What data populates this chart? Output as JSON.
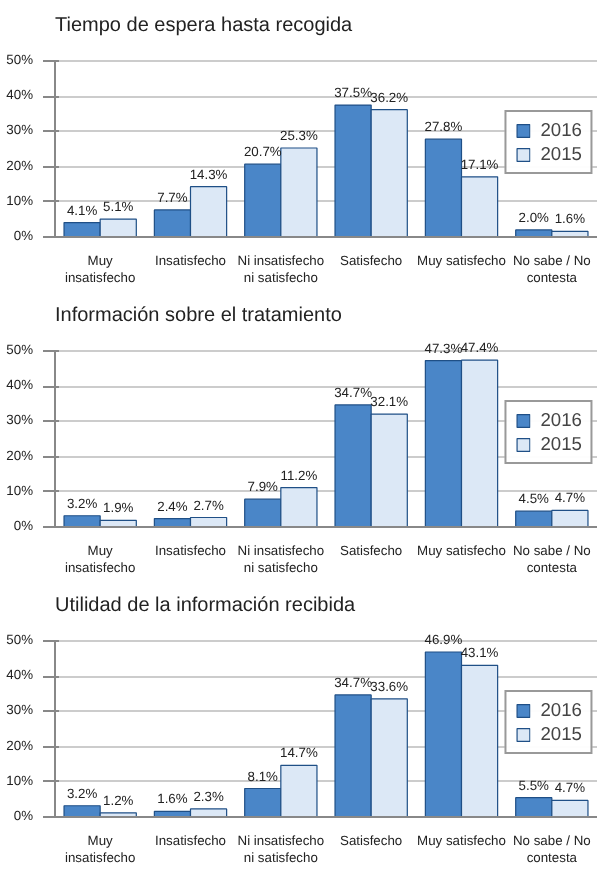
{
  "chart_data": [
    {
      "type": "bar",
      "title": "Tiempo de espera hasta recogida",
      "categories": [
        "Muy insatisfecho",
        "Insatisfecho",
        "Ni insatisfecho ni satisfecho",
        "Satisfecho",
        "Muy satisfecho",
        "No sabe / No contesta"
      ],
      "series": [
        {
          "name": "2016",
          "color": "#4a86c8",
          "values": [
            4.1,
            7.7,
            20.7,
            37.5,
            27.8,
            2.0
          ],
          "value_labels": [
            "4.1%",
            "7.7%",
            "20.7%",
            "37.5%",
            "27.8%",
            "2.0%"
          ]
        },
        {
          "name": "2015",
          "color": "#dce8f6",
          "values": [
            5.1,
            14.3,
            25.3,
            36.2,
            17.1,
            1.6
          ],
          "value_labels": [
            "5.1%",
            "14.3%",
            "25.3%",
            "36.2%",
            "17.1%",
            "1.6%"
          ]
        }
      ],
      "ylim": [
        0,
        50
      ],
      "yticks": [
        {
          "value": 0,
          "label": "0%"
        },
        {
          "value": 10,
          "label": "10%"
        },
        {
          "value": 20,
          "label": "20%"
        },
        {
          "value": 30,
          "label": "30%"
        },
        {
          "value": 40,
          "label": "40%"
        },
        {
          "value": 50,
          "label": "50%"
        }
      ],
      "grid": "y",
      "legend": "right"
    },
    {
      "type": "bar",
      "title": "Información sobre el tratamiento",
      "categories": [
        "Muy insatisfecho",
        "Insatisfecho",
        "Ni insatisfecho ni satisfecho",
        "Satisfecho",
        "Muy satisfecho",
        "No sabe / No contesta"
      ],
      "series": [
        {
          "name": "2016",
          "color": "#4a86c8",
          "values": [
            3.2,
            2.4,
            7.9,
            34.7,
            47.3,
            4.5
          ],
          "value_labels": [
            "3.2%",
            "2.4%",
            "7.9%",
            "34.7%",
            "47.3%",
            "4.5%"
          ]
        },
        {
          "name": "2015",
          "color": "#dce8f6",
          "values": [
            1.9,
            2.7,
            11.2,
            32.1,
            47.4,
            4.7
          ],
          "value_labels": [
            "1.9%",
            "2.7%",
            "11.2%",
            "32.1%",
            "47.4%",
            "4.7%"
          ]
        }
      ],
      "ylim": [
        0,
        50
      ],
      "yticks": [
        {
          "value": 0,
          "label": "0%"
        },
        {
          "value": 10,
          "label": "10%"
        },
        {
          "value": 20,
          "label": "20%"
        },
        {
          "value": 30,
          "label": "30%"
        },
        {
          "value": 40,
          "label": "40%"
        },
        {
          "value": 50,
          "label": "50%"
        }
      ],
      "grid": "y",
      "legend": "right"
    },
    {
      "type": "bar",
      "title": "Utilidad de la información recibida",
      "categories": [
        "Muy insatisfecho",
        "Insatisfecho",
        "Ni insatisfecho ni satisfecho",
        "Satisfecho",
        "Muy satisfecho",
        "No sabe / No contesta"
      ],
      "series": [
        {
          "name": "2016",
          "color": "#4a86c8",
          "values": [
            3.2,
            1.6,
            8.1,
            34.7,
            46.9,
            5.5
          ],
          "value_labels": [
            "3.2%",
            "1.6%",
            "8.1%",
            "34.7%",
            "46.9%",
            "5.5%"
          ]
        },
        {
          "name": "2015",
          "color": "#dce8f6",
          "values": [
            1.2,
            2.3,
            14.7,
            33.6,
            43.1,
            4.7
          ],
          "value_labels": [
            "1.2%",
            "2.3%",
            "14.7%",
            "33.6%",
            "43.1%",
            "4.7%"
          ]
        }
      ],
      "ylim": [
        0,
        50
      ],
      "yticks": [
        {
          "value": 0,
          "label": "0%"
        },
        {
          "value": 10,
          "label": "10%"
        },
        {
          "value": 20,
          "label": "20%"
        },
        {
          "value": 30,
          "label": "30%"
        },
        {
          "value": 40,
          "label": "40%"
        },
        {
          "value": 50,
          "label": "50%"
        }
      ],
      "grid": "y",
      "legend": "right"
    }
  ]
}
